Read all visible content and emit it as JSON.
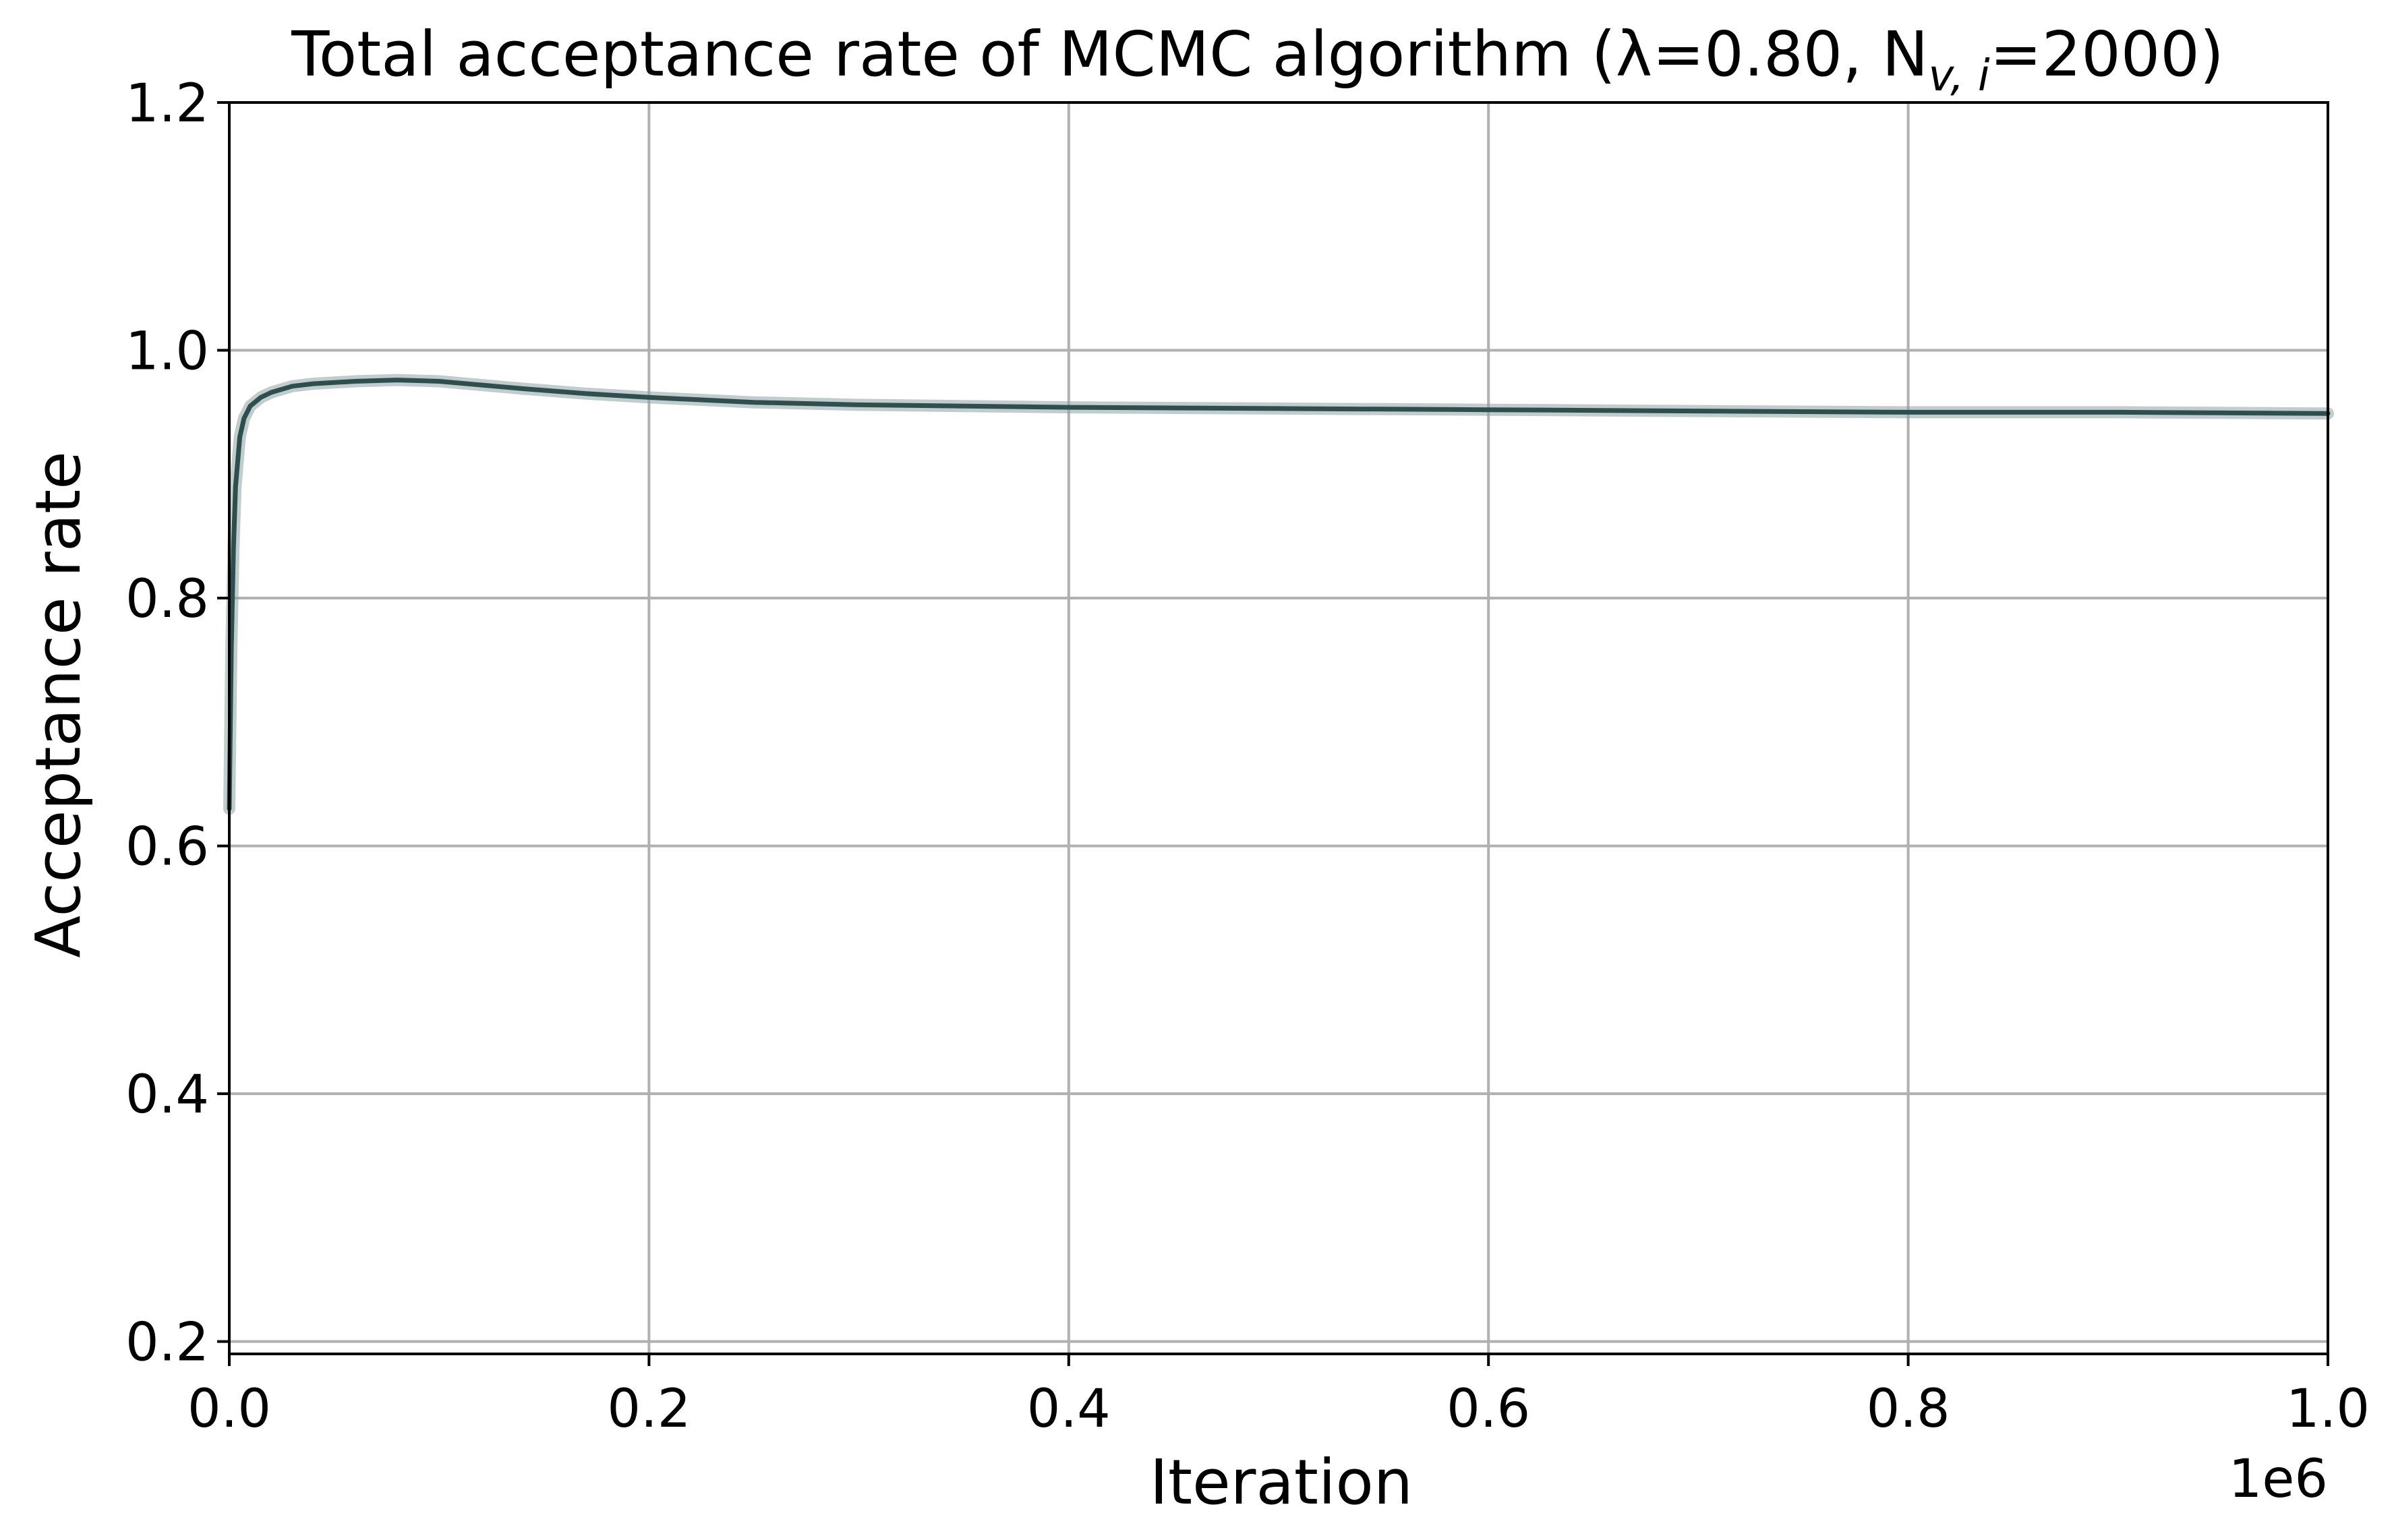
{
  "chart_data": {
    "type": "line",
    "title": "Total acceptance rate of MCMC algorithm (λ=0.80, N",
    "title_subscript": "v, i",
    "title_suffix": "=2000)",
    "xlabel": "Iteration",
    "ylabel": "Acceptance rate",
    "x_offset_label": "1e6",
    "xlim": [
      0,
      1000000
    ],
    "ylim": [
      0.19,
      1.2
    ],
    "x_tick_values": [
      0,
      200000,
      400000,
      600000,
      800000,
      1000000
    ],
    "x_tick_labels": [
      "0.0",
      "0.2",
      "0.4",
      "0.6",
      "0.8",
      "1.0"
    ],
    "y_tick_values": [
      0.2,
      0.4,
      0.6,
      0.8,
      1.0,
      1.2
    ],
    "y_tick_labels": [
      "0.2",
      "0.4",
      "0.6",
      "0.8",
      "1.0",
      "1.2"
    ],
    "grid": true,
    "series": [
      {
        "color": "#2f4f4f",
        "band_color": "#8ea3a3",
        "x": [
          0,
          500,
          1000,
          2000,
          3000,
          5000,
          7000,
          10000,
          15000,
          20000,
          30000,
          40000,
          60000,
          80000,
          100000,
          120000,
          140000,
          170000,
          200000,
          250000,
          300000,
          350000,
          400000,
          500000,
          600000,
          700000,
          800000,
          900000,
          1000000
        ],
        "y": [
          0.63,
          0.7,
          0.76,
          0.84,
          0.89,
          0.93,
          0.945,
          0.955,
          0.962,
          0.966,
          0.971,
          0.973,
          0.975,
          0.976,
          0.975,
          0.972,
          0.969,
          0.965,
          0.962,
          0.958,
          0.956,
          0.955,
          0.954,
          0.953,
          0.952,
          0.951,
          0.95,
          0.95,
          0.949
        ]
      }
    ]
  }
}
